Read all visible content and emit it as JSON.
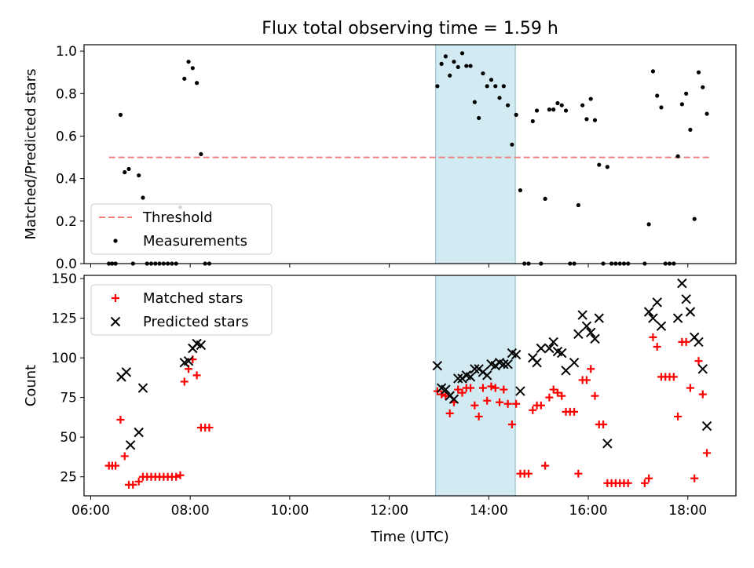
{
  "chart_data": [
    {
      "type": "scatter",
      "title": "Flux total observing time = 1.59 h",
      "xlabel": "",
      "ylabel": "Matched/Predicted stars",
      "xlim": [
        "05:52",
        "18:58"
      ],
      "ylim": [
        0,
        1.03
      ],
      "yticks": [
        0.0,
        0.2,
        0.4,
        0.6,
        0.8,
        1.0
      ],
      "ytick_labels": [
        "0.0",
        "0.2",
        "0.4",
        "0.6",
        "0.8",
        "1.0"
      ],
      "highlight_span": [
        "12:56",
        "14:32"
      ],
      "highlight_color": "#add8e6",
      "legend_position": "lower left",
      "series": [
        {
          "name": "Threshold",
          "kind": "dashed-line",
          "color": "#f08080",
          "points": [
            [
              "06:22",
              0.5
            ],
            [
              "18:26",
              0.5
            ]
          ]
        },
        {
          "name": "Measurements",
          "kind": "dots",
          "color": "#000000",
          "points": [
            [
              "06:22",
              0.0
            ],
            [
              "06:26",
              0.0
            ],
            [
              "06:30",
              0.0
            ],
            [
              "06:36",
              0.7
            ],
            [
              "06:41",
              0.43
            ],
            [
              "06:46",
              0.445
            ],
            [
              "06:51",
              0.0
            ],
            [
              "06:58",
              0.415
            ],
            [
              "07:03",
              0.31
            ],
            [
              "07:08",
              0.0
            ],
            [
              "07:13",
              0.0
            ],
            [
              "07:18",
              0.0
            ],
            [
              "07:23",
              0.0
            ],
            [
              "07:28",
              0.0
            ],
            [
              "07:33",
              0.0
            ],
            [
              "07:38",
              0.0
            ],
            [
              "07:43",
              0.0
            ],
            [
              "07:48",
              0.265
            ],
            [
              "07:53",
              0.87
            ],
            [
              "07:58",
              0.95
            ],
            [
              "08:03",
              0.92
            ],
            [
              "08:08",
              0.85
            ],
            [
              "08:13",
              0.515
            ],
            [
              "08:18",
              0.0
            ],
            [
              "08:23",
              0.0
            ],
            [
              "12:58",
              0.835
            ],
            [
              "13:03",
              0.94
            ],
            [
              "13:08",
              0.975
            ],
            [
              "13:13",
              0.885
            ],
            [
              "13:18",
              0.95
            ],
            [
              "13:23",
              0.925
            ],
            [
              "13:28",
              0.99
            ],
            [
              "13:33",
              0.93
            ],
            [
              "13:38",
              0.93
            ],
            [
              "13:43",
              0.76
            ],
            [
              "13:48",
              0.685
            ],
            [
              "13:53",
              0.895
            ],
            [
              "13:58",
              0.835
            ],
            [
              "14:03",
              0.865
            ],
            [
              "14:08",
              0.835
            ],
            [
              "14:13",
              0.78
            ],
            [
              "14:18",
              0.835
            ],
            [
              "14:23",
              0.745
            ],
            [
              "14:28",
              0.56
            ],
            [
              "14:33",
              0.7
            ],
            [
              "14:38",
              0.345
            ],
            [
              "14:43",
              0.0
            ],
            [
              "14:48",
              0.0
            ],
            [
              "14:53",
              0.67
            ],
            [
              "14:58",
              0.72
            ],
            [
              "15:03",
              0.0
            ],
            [
              "15:08",
              0.305
            ],
            [
              "15:13",
              0.725
            ],
            [
              "15:18",
              0.725
            ],
            [
              "15:23",
              0.755
            ],
            [
              "15:28",
              0.745
            ],
            [
              "15:33",
              0.72
            ],
            [
              "15:38",
              0.0
            ],
            [
              "15:43",
              0.0
            ],
            [
              "15:48",
              0.275
            ],
            [
              "15:53",
              0.745
            ],
            [
              "15:58",
              0.68
            ],
            [
              "16:03",
              0.775
            ],
            [
              "16:08",
              0.675
            ],
            [
              "16:13",
              0.465
            ],
            [
              "16:18",
              0.0
            ],
            [
              "16:23",
              0.455
            ],
            [
              "16:28",
              0.0
            ],
            [
              "16:33",
              0.0
            ],
            [
              "16:38",
              0.0
            ],
            [
              "16:43",
              0.0
            ],
            [
              "16:48",
              0.0
            ],
            [
              "17:08",
              0.0
            ],
            [
              "17:13",
              0.185
            ],
            [
              "17:18",
              0.905
            ],
            [
              "17:23",
              0.79
            ],
            [
              "17:28",
              0.735
            ],
            [
              "17:33",
              0.0
            ],
            [
              "17:38",
              0.0
            ],
            [
              "17:43",
              0.0
            ],
            [
              "17:48",
              0.505
            ],
            [
              "17:53",
              0.75
            ],
            [
              "17:58",
              0.8
            ],
            [
              "18:03",
              0.63
            ],
            [
              "18:08",
              0.21
            ],
            [
              "18:13",
              0.9
            ],
            [
              "18:18",
              0.83
            ],
            [
              "18:23",
              0.705
            ]
          ]
        }
      ]
    },
    {
      "type": "scatter",
      "title": "",
      "xlabel": "Time (UTC)",
      "ylabel": "Count",
      "xlim": [
        "05:52",
        "18:58"
      ],
      "ylim": [
        13,
        152
      ],
      "yticks": [
        25,
        50,
        75,
        100,
        125,
        150
      ],
      "ytick_labels": [
        "25",
        "50",
        "75",
        "100",
        "125",
        "150"
      ],
      "xticks": [
        "06:00",
        "08:00",
        "10:00",
        "12:00",
        "14:00",
        "16:00",
        "18:00"
      ],
      "xtick_labels": [
        "06:00",
        "08:00",
        "10:00",
        "12:00",
        "14:00",
        "16:00",
        "18:00"
      ],
      "highlight_span": [
        "12:56",
        "14:32"
      ],
      "highlight_color": "#add8e6",
      "legend_position": "upper left",
      "series": [
        {
          "name": "Matched stars",
          "marker": "plus",
          "color": "#ff0000",
          "points": [
            [
              "06:22",
              32
            ],
            [
              "06:26",
              32
            ],
            [
              "06:30",
              32
            ],
            [
              "06:36",
              61
            ],
            [
              "06:41",
              38
            ],
            [
              "06:46",
              20
            ],
            [
              "06:51",
              20
            ],
            [
              "06:58",
              22
            ],
            [
              "07:03",
              25
            ],
            [
              "07:08",
              25
            ],
            [
              "07:13",
              25
            ],
            [
              "07:18",
              25
            ],
            [
              "07:23",
              25
            ],
            [
              "07:28",
              25
            ],
            [
              "07:33",
              25
            ],
            [
              "07:38",
              25
            ],
            [
              "07:43",
              25
            ],
            [
              "07:48",
              26
            ],
            [
              "07:53",
              85
            ],
            [
              "07:58",
              93
            ],
            [
              "08:03",
              99
            ],
            [
              "08:08",
              89
            ],
            [
              "08:13",
              56
            ],
            [
              "08:18",
              56
            ],
            [
              "08:23",
              56
            ],
            [
              "12:58",
              79
            ],
            [
              "13:03",
              77
            ],
            [
              "13:08",
              76
            ],
            [
              "13:13",
              65
            ],
            [
              "13:18",
              72
            ],
            [
              "13:23",
              80
            ],
            [
              "13:28",
              78
            ],
            [
              "13:33",
              81
            ],
            [
              "13:38",
              81
            ],
            [
              "13:43",
              70
            ],
            [
              "13:48",
              63
            ],
            [
              "13:53",
              81
            ],
            [
              "13:58",
              73
            ],
            [
              "14:03",
              82
            ],
            [
              "14:08",
              81
            ],
            [
              "14:13",
              72
            ],
            [
              "14:18",
              80
            ],
            [
              "14:23",
              71
            ],
            [
              "14:28",
              58
            ],
            [
              "14:33",
              71
            ],
            [
              "14:38",
              27
            ],
            [
              "14:43",
              27
            ],
            [
              "14:48",
              27
            ],
            [
              "14:53",
              67
            ],
            [
              "14:58",
              70
            ],
            [
              "15:03",
              70
            ],
            [
              "15:08",
              32
            ],
            [
              "15:13",
              75
            ],
            [
              "15:18",
              80
            ],
            [
              "15:23",
              78
            ],
            [
              "15:28",
              76
            ],
            [
              "15:33",
              66
            ],
            [
              "15:38",
              66
            ],
            [
              "15:43",
              66
            ],
            [
              "15:48",
              27
            ],
            [
              "15:53",
              86
            ],
            [
              "15:58",
              86
            ],
            [
              "16:03",
              93
            ],
            [
              "16:08",
              76
            ],
            [
              "16:13",
              58
            ],
            [
              "16:18",
              58
            ],
            [
              "16:23",
              21
            ],
            [
              "16:28",
              21
            ],
            [
              "16:33",
              21
            ],
            [
              "16:38",
              21
            ],
            [
              "16:43",
              21
            ],
            [
              "16:48",
              21
            ],
            [
              "17:08",
              21
            ],
            [
              "17:13",
              24
            ],
            [
              "17:18",
              113
            ],
            [
              "17:23",
              107
            ],
            [
              "17:28",
              88
            ],
            [
              "17:33",
              88
            ],
            [
              "17:38",
              88
            ],
            [
              "17:43",
              88
            ],
            [
              "17:48",
              63
            ],
            [
              "17:53",
              110
            ],
            [
              "17:58",
              110
            ],
            [
              "18:03",
              81
            ],
            [
              "18:08",
              24
            ],
            [
              "18:13",
              98
            ],
            [
              "18:18",
              77
            ],
            [
              "18:23",
              40
            ]
          ]
        },
        {
          "name": "Predicted stars",
          "marker": "x",
          "color": "#000000",
          "points": [
            [
              "06:37",
              88
            ],
            [
              "06:43",
              91
            ],
            [
              "06:48",
              45
            ],
            [
              "06:58",
              53
            ],
            [
              "07:03",
              81
            ],
            [
              "07:53",
              97
            ],
            [
              "07:58",
              98
            ],
            [
              "08:03",
              106
            ],
            [
              "08:08",
              109
            ],
            [
              "08:13",
              108
            ],
            [
              "12:58",
              95
            ],
            [
              "13:03",
              81
            ],
            [
              "13:08",
              80
            ],
            [
              "13:13",
              76
            ],
            [
              "13:18",
              74
            ],
            [
              "13:23",
              87
            ],
            [
              "13:28",
              87
            ],
            [
              "13:33",
              89
            ],
            [
              "13:38",
              88
            ],
            [
              "13:43",
              93
            ],
            [
              "13:48",
              93
            ],
            [
              "13:53",
              91
            ],
            [
              "13:58",
              89
            ],
            [
              "14:03",
              96
            ],
            [
              "14:08",
              95
            ],
            [
              "14:13",
              97
            ],
            [
              "14:18",
              96
            ],
            [
              "14:23",
              96
            ],
            [
              "14:28",
              103
            ],
            [
              "14:33",
              102
            ],
            [
              "14:38",
              79
            ],
            [
              "14:53",
              100
            ],
            [
              "14:58",
              97
            ],
            [
              "15:03",
              106
            ],
            [
              "15:13",
              106
            ],
            [
              "15:18",
              110
            ],
            [
              "15:23",
              104
            ],
            [
              "15:28",
              103
            ],
            [
              "15:33",
              92
            ],
            [
              "15:43",
              97
            ],
            [
              "15:48",
              115
            ],
            [
              "15:53",
              127
            ],
            [
              "15:58",
              120
            ],
            [
              "16:03",
              116
            ],
            [
              "16:08",
              112
            ],
            [
              "16:13",
              125
            ],
            [
              "16:23",
              46
            ],
            [
              "17:13",
              129
            ],
            [
              "17:18",
              125
            ],
            [
              "17:23",
              135
            ],
            [
              "17:28",
              120
            ],
            [
              "17:48",
              125
            ],
            [
              "17:53",
              147
            ],
            [
              "17:58",
              137
            ],
            [
              "18:03",
              129
            ],
            [
              "18:08",
              113
            ],
            [
              "18:13",
              110
            ],
            [
              "18:18",
              93
            ],
            [
              "18:23",
              57
            ]
          ]
        }
      ]
    }
  ]
}
